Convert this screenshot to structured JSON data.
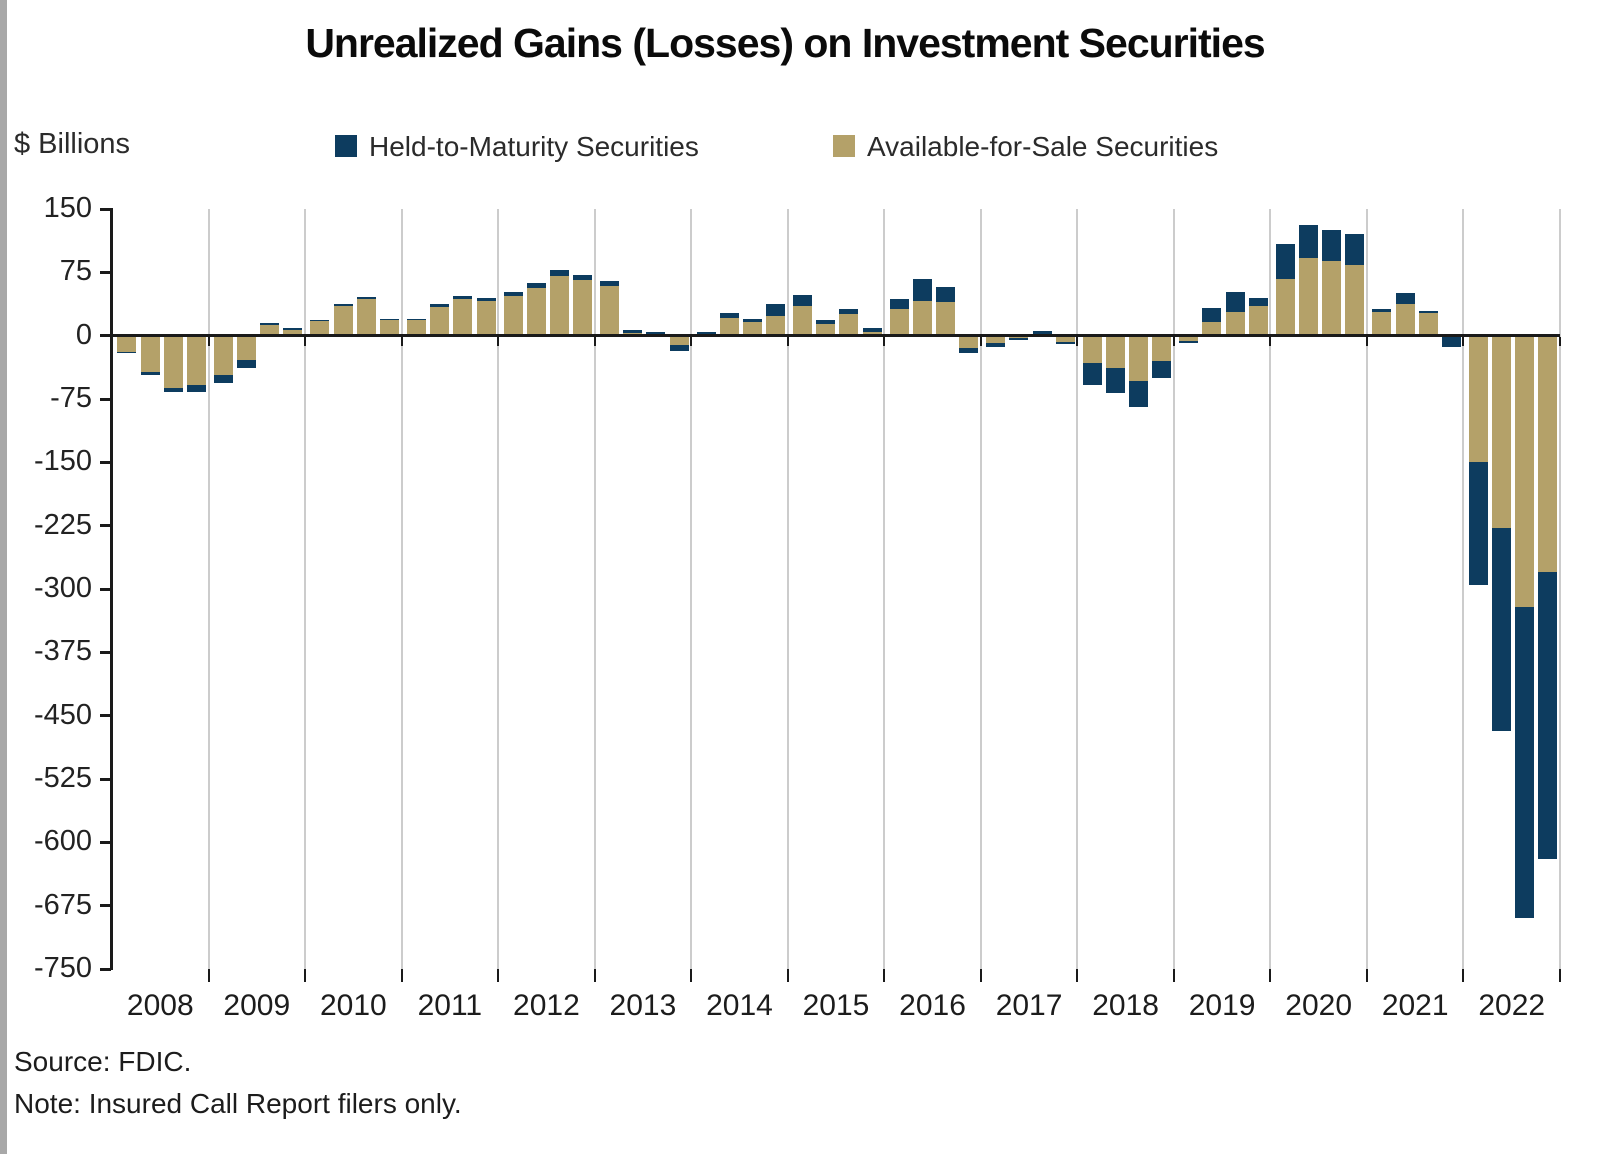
{
  "title": "Unrealized Gains (Losses) on Investment Securities",
  "y_axis_unit": "$ Billions",
  "legend": [
    {
      "label": "Held-to-Maturity Securities",
      "color": "#0d3c5f"
    },
    {
      "label": "Available-for-Sale Securities",
      "color": "#b4a169"
    }
  ],
  "source": "Source: FDIC.",
  "note": "Note: Insured Call Report filers only.",
  "chart_data": {
    "type": "bar",
    "stacked": true,
    "orientation": "vertical",
    "title": "Unrealized Gains (Losses) on Investment Securities",
    "ylabel": "$ Billions",
    "ylim": [
      -750,
      150
    ],
    "ytick_step": 75,
    "ytick_labels": [
      "150",
      "75",
      "0",
      "-75",
      "-150",
      "-225",
      "-300",
      "-375",
      "-450",
      "-525",
      "-600",
      "-675",
      "-750"
    ],
    "grid": "vertical-year-separators",
    "legend_position": "top",
    "categories": [
      "2008",
      "2009",
      "2010",
      "2011",
      "2012",
      "2013",
      "2014",
      "2015",
      "2016",
      "2017",
      "2018",
      "2019",
      "2020",
      "2021",
      "2022"
    ],
    "bars_per_category": 4,
    "frequency": "quarterly",
    "series": [
      {
        "name": "Available-for-Sale Securities",
        "color": "#b4a169",
        "values": [
          -19,
          -43,
          -62,
          -58,
          -46,
          -29,
          13,
          7,
          17,
          35,
          43,
          18,
          18,
          34,
          43,
          41,
          47,
          56,
          71,
          66,
          59,
          3,
          1,
          -11,
          1,
          21,
          16,
          23,
          35,
          14,
          26,
          4,
          31,
          41,
          40,
          -15,
          -9,
          -3,
          2,
          -7,
          -32,
          -38,
          -54,
          -30,
          -6,
          16,
          28,
          35,
          67,
          92,
          88,
          84,
          28,
          37,
          27,
          2,
          -150,
          -228,
          -321,
          -280
        ]
      },
      {
        "name": "Held-to-Maturity Securities",
        "color": "#0d3c5f",
        "values": [
          -1,
          -3,
          -5,
          -9,
          -10,
          -9,
          2,
          2,
          2,
          3,
          3,
          2,
          2,
          4,
          4,
          4,
          5,
          6,
          7,
          6,
          6,
          4,
          3,
          -7,
          3,
          6,
          4,
          14,
          13,
          5,
          6,
          5,
          12,
          26,
          18,
          -5,
          -5,
          -2,
          3,
          -3,
          -26,
          -30,
          -30,
          -20,
          -3,
          17,
          24,
          10,
          41,
          39,
          37,
          36,
          3,
          14,
          2,
          -13,
          -145,
          -240,
          -369,
          -340
        ]
      }
    ]
  }
}
